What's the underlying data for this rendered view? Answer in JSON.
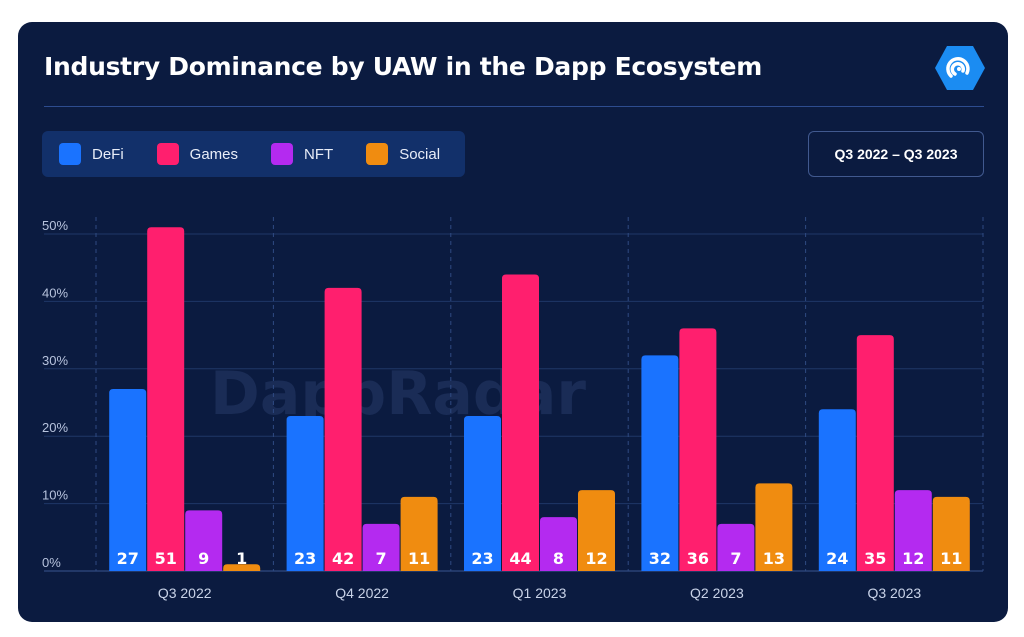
{
  "title": "Industry Dominance by UAW in the Dapp Ecosystem",
  "date_range": "Q3 2022 – Q3 2023",
  "watermark": "DappRadar",
  "colors": {
    "DeFi": "#1a73ff",
    "Games": "#ff1f6e",
    "NFT": "#b42af0",
    "Social": "#f08c10"
  },
  "chart_data": {
    "type": "bar",
    "title": "Industry Dominance by UAW in the Dapp Ecosystem",
    "categories": [
      "Q3 2022",
      "Q4 2022",
      "Q1 2023",
      "Q2 2023",
      "Q3 2023"
    ],
    "series": [
      {
        "name": "DeFi",
        "values": [
          27,
          23,
          23,
          32,
          24
        ]
      },
      {
        "name": "Games",
        "values": [
          51,
          42,
          44,
          36,
          35
        ]
      },
      {
        "name": "NFT",
        "values": [
          9,
          7,
          8,
          7,
          12
        ]
      },
      {
        "name": "Social",
        "values": [
          1,
          11,
          12,
          13,
          11
        ]
      }
    ],
    "yticks": [
      "0%",
      "10%",
      "20%",
      "30%",
      "40%",
      "50%"
    ],
    "ylim": [
      0,
      53
    ],
    "xlabel": "",
    "ylabel": "",
    "legend": "top-left",
    "grid": true
  }
}
